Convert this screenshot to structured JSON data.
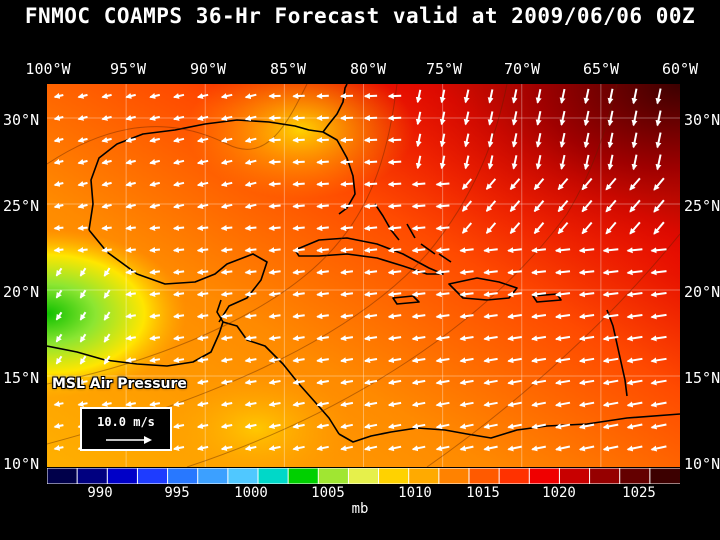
{
  "title": "FNMOC COAMPS 36-Hr Forecast valid at 2009/06/06 00Z",
  "longitude_labels": [
    "100°W",
    "95°W",
    "90°W",
    "85°W",
    "80°W",
    "75°W",
    "70°W",
    "65°W",
    "60°W"
  ],
  "latitude_labels": [
    "30°N",
    "25°N",
    "20°N",
    "15°N",
    "10°N"
  ],
  "field_label": "MSL Air Pressure",
  "reference_vector": {
    "label": "10.0 m/s"
  },
  "colorbar": {
    "unit": "mb",
    "tick_labels": [
      "990",
      "995",
      "1000",
      "1005",
      "1010",
      "1015",
      "1020",
      "1025"
    ],
    "colors": [
      "#00004a",
      "#000080",
      "#0000c8",
      "#1e3cff",
      "#2878ff",
      "#3ca0ff",
      "#50c8ff",
      "#00d8c8",
      "#00d000",
      "#a0e632",
      "#e6f04b",
      "#ffd200",
      "#ffaa00",
      "#ff8200",
      "#ff5a00",
      "#ff3200",
      "#f00000",
      "#c80000",
      "#960000",
      "#640000",
      "#3c0000"
    ]
  },
  "chart_data": {
    "type": "heatmap",
    "title": "FNMOC COAMPS 36-Hr Forecast valid at 2009/06/06 00Z",
    "variable": "MSL Air Pressure",
    "unit": "mb",
    "xlabel": "",
    "ylabel": "",
    "lon_range": [
      -100,
      -60
    ],
    "lat_range": [
      10,
      32
    ],
    "value_range": [
      986,
      1028
    ],
    "pressure_field": [
      {
        "lat": 31,
        "lon": -62,
        "value": 1026
      },
      {
        "lat": 30,
        "lon": -70,
        "value": 1021
      },
      {
        "lat": 29,
        "lon": -80,
        "value": 1013
      },
      {
        "lat": 28,
        "lon": -88,
        "value": 1011
      },
      {
        "lat": 25,
        "lon": -75,
        "value": 1016
      },
      {
        "lat": 22,
        "lon": -66,
        "value": 1018
      },
      {
        "lat": 20,
        "lon": -80,
        "value": 1014
      },
      {
        "lat": 18,
        "lon": -85,
        "value": 1012
      },
      {
        "lat": 15,
        "lon": -75,
        "value": 1013
      },
      {
        "lat": 12,
        "lon": -65,
        "value": 1015
      },
      {
        "lat": 19,
        "lon": -99,
        "value": 1005
      },
      {
        "lat": 16,
        "lon": -95,
        "value": 1008
      }
    ]
  }
}
